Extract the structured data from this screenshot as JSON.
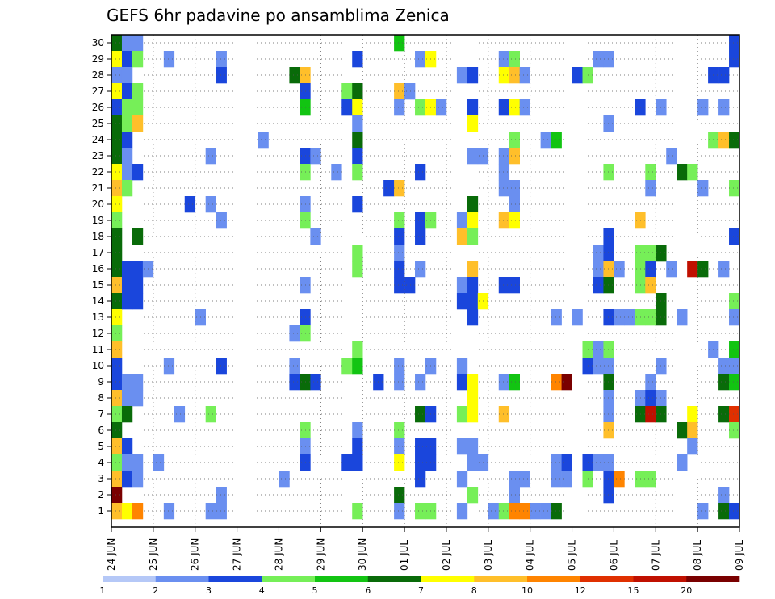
{
  "chart_data": {
    "type": "heatmap",
    "title": "GEFS 6hr padavine po ansamblima Zenica",
    "xlabel": "",
    "ylabel": "",
    "y_range": [
      1,
      30
    ],
    "x_range_days": [
      "24 JUN",
      "09 JUL"
    ],
    "y_ticks": [
      "1",
      "2",
      "3",
      "4",
      "5",
      "6",
      "7",
      "8",
      "9",
      "10",
      "11",
      "12",
      "13",
      "14",
      "15",
      "16",
      "17",
      "18",
      "19",
      "20",
      "21",
      "22",
      "23",
      "24",
      "25",
      "26",
      "27",
      "28",
      "29",
      "30"
    ],
    "x_ticks": [
      "24 JUN",
      "25 JUN",
      "26 JUN",
      "27 JUN",
      "28 JUN",
      "29 JUN",
      "30 JUN",
      "01 JUL",
      "02 JUL",
      "03 JUL",
      "04 JUL",
      "05 JUL",
      "06 JUL",
      "07 JUL",
      "08 JUL",
      "09 JUL"
    ],
    "grid": true,
    "legend": "bottom colorbar",
    "colorbar": {
      "levels": [
        1,
        2,
        3,
        4,
        5,
        6,
        7,
        8,
        10,
        12,
        15,
        20
      ],
      "labels": [
        "1",
        "2",
        "3",
        "4",
        "5",
        "6",
        "7",
        "8",
        "10",
        "12",
        "15",
        "20"
      ],
      "colors": [
        "#b5c8f7",
        "#6a8ff0",
        "#1a46dc",
        "#76ef58",
        "#12c412",
        "#096b09",
        "#ffff00",
        "#ffbf2a",
        "#ff8400",
        "#e03000",
        "#c01000",
        "#7a0000"
      ]
    },
    "columns": 60,
    "cells": [
      [
        0,
        30,
        5
      ],
      [
        0,
        29,
        6
      ],
      [
        0,
        28,
        1
      ],
      [
        0,
        27,
        6
      ],
      [
        0,
        26,
        2
      ],
      [
        0,
        25,
        5
      ],
      [
        0,
        24,
        5
      ],
      [
        0,
        23,
        5
      ],
      [
        0,
        22,
        6
      ],
      [
        0,
        21,
        7
      ],
      [
        0,
        20,
        6
      ],
      [
        0,
        19,
        3
      ],
      [
        0,
        18,
        5
      ],
      [
        0,
        17,
        5
      ],
      [
        0,
        16,
        5
      ],
      [
        0,
        15,
        7
      ],
      [
        0,
        14,
        5
      ],
      [
        0,
        13,
        6
      ],
      [
        0,
        12,
        3
      ],
      [
        0,
        11,
        7
      ],
      [
        0,
        10,
        2
      ],
      [
        0,
        9,
        2
      ],
      [
        0,
        8,
        7
      ],
      [
        0,
        7,
        3
      ],
      [
        0,
        6,
        5
      ],
      [
        0,
        5,
        7
      ],
      [
        0,
        4,
        3
      ],
      [
        0,
        3,
        7
      ],
      [
        0,
        2,
        11
      ],
      [
        0,
        1,
        7
      ],
      [
        1,
        30,
        1
      ],
      [
        1,
        29,
        2
      ],
      [
        1,
        28,
        1
      ],
      [
        1,
        27,
        2
      ],
      [
        1,
        26,
        3
      ],
      [
        1,
        25,
        3
      ],
      [
        1,
        24,
        2
      ],
      [
        1,
        23,
        1
      ],
      [
        1,
        22,
        1
      ],
      [
        1,
        21,
        3
      ],
      [
        1,
        16,
        2
      ],
      [
        1,
        15,
        2
      ],
      [
        1,
        14,
        2
      ],
      [
        1,
        9,
        1
      ],
      [
        1,
        8,
        1
      ],
      [
        1,
        7,
        5
      ],
      [
        1,
        5,
        2
      ],
      [
        1,
        4,
        1
      ],
      [
        1,
        3,
        2
      ],
      [
        1,
        1,
        6
      ],
      [
        2,
        30,
        1
      ],
      [
        2,
        29,
        3
      ],
      [
        2,
        27,
        3
      ],
      [
        2,
        26,
        3
      ],
      [
        2,
        25,
        7
      ],
      [
        2,
        22,
        2
      ],
      [
        2,
        18,
        5
      ],
      [
        2,
        16,
        2
      ],
      [
        2,
        15,
        2
      ],
      [
        2,
        14,
        2
      ],
      [
        2,
        9,
        1
      ],
      [
        2,
        8,
        1
      ],
      [
        2,
        4,
        1
      ],
      [
        2,
        3,
        1
      ],
      [
        2,
        1,
        8
      ],
      [
        3,
        16,
        1
      ],
      [
        4,
        4,
        1
      ],
      [
        5,
        29,
        1
      ],
      [
        5,
        10,
        1
      ],
      [
        5,
        1,
        1
      ],
      [
        6,
        7,
        1
      ],
      [
        7,
        20,
        2
      ],
      [
        8,
        13,
        1
      ],
      [
        9,
        23,
        1
      ],
      [
        9,
        20,
        1
      ],
      [
        9,
        7,
        3
      ],
      [
        9,
        1,
        1
      ],
      [
        10,
        29,
        1
      ],
      [
        10,
        28,
        2
      ],
      [
        10,
        19,
        1
      ],
      [
        10,
        10,
        2
      ],
      [
        10,
        2,
        1
      ],
      [
        10,
        1,
        1
      ],
      [
        14,
        24,
        1
      ],
      [
        16,
        3,
        1
      ],
      [
        17,
        28,
        5
      ],
      [
        17,
        12,
        1
      ],
      [
        17,
        10,
        1
      ],
      [
        17,
        9,
        2
      ],
      [
        18,
        28,
        7
      ],
      [
        18,
        27,
        2
      ],
      [
        18,
        26,
        4
      ],
      [
        18,
        23,
        2
      ],
      [
        18,
        22,
        3
      ],
      [
        18,
        20,
        1
      ],
      [
        18,
        19,
        3
      ],
      [
        18,
        15,
        1
      ],
      [
        18,
        13,
        2
      ],
      [
        18,
        12,
        3
      ],
      [
        18,
        9,
        5
      ],
      [
        18,
        6,
        3
      ],
      [
        18,
        5,
        1
      ],
      [
        18,
        4,
        2
      ],
      [
        19,
        23,
        1
      ],
      [
        19,
        18,
        1
      ],
      [
        19,
        9,
        2
      ],
      [
        21,
        22,
        1
      ],
      [
        22,
        27,
        3
      ],
      [
        22,
        26,
        2
      ],
      [
        22,
        10,
        3
      ],
      [
        22,
        4,
        2
      ],
      [
        23,
        29,
        2
      ],
      [
        23,
        27,
        5
      ],
      [
        23,
        26,
        6
      ],
      [
        23,
        25,
        1
      ],
      [
        23,
        24,
        5
      ],
      [
        23,
        23,
        2
      ],
      [
        23,
        22,
        3
      ],
      [
        23,
        20,
        2
      ],
      [
        23,
        17,
        3
      ],
      [
        23,
        16,
        3
      ],
      [
        23,
        11,
        3
      ],
      [
        23,
        10,
        4
      ],
      [
        23,
        6,
        1
      ],
      [
        23,
        5,
        2
      ],
      [
        23,
        4,
        2
      ],
      [
        23,
        1,
        3
      ],
      [
        25,
        9,
        2
      ],
      [
        26,
        21,
        2
      ],
      [
        27,
        30,
        4
      ],
      [
        27,
        27,
        7
      ],
      [
        27,
        26,
        1
      ],
      [
        27,
        21,
        7
      ],
      [
        27,
        19,
        3
      ],
      [
        27,
        18,
        2
      ],
      [
        27,
        17,
        1
      ],
      [
        27,
        16,
        2
      ],
      [
        27,
        15,
        2
      ],
      [
        27,
        10,
        1
      ],
      [
        27,
        9,
        1
      ],
      [
        27,
        6,
        3
      ],
      [
        27,
        5,
        1
      ],
      [
        27,
        4,
        6
      ],
      [
        27,
        2,
        5
      ],
      [
        27,
        1,
        1
      ],
      [
        28,
        27,
        1
      ],
      [
        28,
        15,
        2
      ],
      [
        29,
        29,
        1
      ],
      [
        29,
        26,
        3
      ],
      [
        29,
        22,
        2
      ],
      [
        29,
        19,
        2
      ],
      [
        29,
        18,
        2
      ],
      [
        29,
        16,
        1
      ],
      [
        29,
        9,
        1
      ],
      [
        29,
        7,
        5
      ],
      [
        29,
        5,
        2
      ],
      [
        29,
        4,
        2
      ],
      [
        29,
        3,
        2
      ],
      [
        29,
        1,
        3
      ],
      [
        30,
        29,
        6
      ],
      [
        30,
        26,
        6
      ],
      [
        30,
        19,
        3
      ],
      [
        30,
        10,
        1
      ],
      [
        30,
        7,
        2
      ],
      [
        30,
        5,
        2
      ],
      [
        30,
        4,
        2
      ],
      [
        30,
        1,
        3
      ],
      [
        31,
        26,
        1
      ],
      [
        33,
        28,
        1
      ],
      [
        33,
        19,
        1
      ],
      [
        33,
        18,
        7
      ],
      [
        33,
        15,
        1
      ],
      [
        33,
        14,
        2
      ],
      [
        33,
        10,
        1
      ],
      [
        33,
        9,
        2
      ],
      [
        33,
        7,
        3
      ],
      [
        33,
        5,
        1
      ],
      [
        33,
        3,
        1
      ],
      [
        33,
        1,
        1
      ],
      [
        34,
        28,
        2
      ],
      [
        34,
        26,
        2
      ],
      [
        34,
        25,
        6
      ],
      [
        34,
        23,
        1
      ],
      [
        34,
        20,
        5
      ],
      [
        34,
        19,
        6
      ],
      [
        34,
        18,
        3
      ],
      [
        34,
        16,
        7
      ],
      [
        34,
        15,
        2
      ],
      [
        34,
        14,
        2
      ],
      [
        34,
        13,
        2
      ],
      [
        34,
        9,
        6
      ],
      [
        34,
        8,
        6
      ],
      [
        34,
        7,
        6
      ],
      [
        34,
        5,
        1
      ],
      [
        34,
        4,
        1
      ],
      [
        34,
        2,
        3
      ],
      [
        35,
        23,
        1
      ],
      [
        35,
        14,
        6
      ],
      [
        35,
        4,
        1
      ],
      [
        36,
        1,
        1
      ],
      [
        37,
        29,
        1
      ],
      [
        37,
        28,
        6
      ],
      [
        37,
        26,
        2
      ],
      [
        37,
        23,
        1
      ],
      [
        37,
        22,
        1
      ],
      [
        37,
        21,
        1
      ],
      [
        37,
        19,
        7
      ],
      [
        37,
        15,
        2
      ],
      [
        37,
        9,
        1
      ],
      [
        37,
        7,
        7
      ],
      [
        37,
        1,
        3
      ],
      [
        38,
        29,
        3
      ],
      [
        38,
        28,
        7
      ],
      [
        38,
        26,
        6
      ],
      [
        38,
        24,
        3
      ],
      [
        38,
        23,
        7
      ],
      [
        38,
        21,
        1
      ],
      [
        38,
        20,
        1
      ],
      [
        38,
        19,
        6
      ],
      [
        38,
        15,
        2
      ],
      [
        38,
        9,
        4
      ],
      [
        38,
        3,
        1
      ],
      [
        38,
        2,
        1
      ],
      [
        38,
        1,
        8
      ],
      [
        39,
        28,
        1
      ],
      [
        39,
        26,
        1
      ],
      [
        39,
        3,
        1
      ],
      [
        39,
        1,
        8
      ],
      [
        40,
        1,
        1
      ],
      [
        41,
        24,
        1
      ],
      [
        41,
        1,
        1
      ],
      [
        42,
        24,
        4
      ],
      [
        42,
        13,
        1
      ],
      [
        42,
        9,
        8
      ],
      [
        42,
        4,
        1
      ],
      [
        42,
        3,
        1
      ],
      [
        42,
        1,
        5
      ],
      [
        43,
        9,
        11
      ],
      [
        43,
        4,
        2
      ],
      [
        43,
        3,
        1
      ],
      [
        44,
        13,
        1
      ],
      [
        44,
        28,
        2
      ],
      [
        45,
        28,
        3
      ],
      [
        45,
        11,
        3
      ],
      [
        45,
        10,
        2
      ],
      [
        45,
        4,
        2
      ],
      [
        45,
        3,
        3
      ],
      [
        46,
        29,
        1
      ],
      [
        46,
        17,
        1
      ],
      [
        46,
        16,
        1
      ],
      [
        46,
        15,
        2
      ],
      [
        46,
        11,
        1
      ],
      [
        46,
        10,
        1
      ],
      [
        46,
        4,
        1
      ],
      [
        47,
        29,
        1
      ],
      [
        47,
        25,
        1
      ],
      [
        47,
        22,
        3
      ],
      [
        47,
        18,
        2
      ],
      [
        47,
        17,
        2
      ],
      [
        47,
        16,
        7
      ],
      [
        47,
        15,
        5
      ],
      [
        47,
        13,
        2
      ],
      [
        47,
        11,
        3
      ],
      [
        47,
        10,
        1
      ],
      [
        47,
        9,
        5
      ],
      [
        47,
        8,
        1
      ],
      [
        47,
        7,
        1
      ],
      [
        47,
        6,
        7
      ],
      [
        47,
        4,
        1
      ],
      [
        47,
        3,
        2
      ],
      [
        47,
        2,
        2
      ],
      [
        48,
        16,
        1
      ],
      [
        48,
        13,
        1
      ],
      [
        48,
        3,
        8
      ],
      [
        49,
        13,
        1
      ],
      [
        50,
        26,
        2
      ],
      [
        50,
        19,
        7
      ],
      [
        50,
        17,
        3
      ],
      [
        50,
        16,
        3
      ],
      [
        50,
        15,
        3
      ],
      [
        50,
        13,
        3
      ],
      [
        50,
        8,
        1
      ],
      [
        50,
        7,
        5
      ],
      [
        50,
        3,
        3
      ],
      [
        51,
        22,
        3
      ],
      [
        51,
        21,
        1
      ],
      [
        51,
        17,
        3
      ],
      [
        51,
        16,
        2
      ],
      [
        51,
        15,
        7
      ],
      [
        51,
        13,
        3
      ],
      [
        51,
        9,
        1
      ],
      [
        51,
        8,
        2
      ],
      [
        51,
        7,
        10
      ],
      [
        51,
        3,
        3
      ],
      [
        52,
        26,
        1
      ],
      [
        52,
        17,
        5
      ],
      [
        52,
        14,
        5
      ],
      [
        52,
        13,
        5
      ],
      [
        52,
        10,
        1
      ],
      [
        52,
        8,
        1
      ],
      [
        52,
        7,
        5
      ],
      [
        53,
        23,
        1
      ],
      [
        53,
        16,
        1
      ],
      [
        54,
        22,
        5
      ],
      [
        54,
        13,
        1
      ],
      [
        54,
        6,
        5
      ],
      [
        54,
        4,
        1
      ],
      [
        55,
        22,
        3
      ],
      [
        55,
        16,
        10
      ],
      [
        55,
        7,
        6
      ],
      [
        55,
        6,
        7
      ],
      [
        55,
        5,
        1
      ],
      [
        56,
        26,
        1
      ],
      [
        56,
        21,
        1
      ],
      [
        56,
        16,
        5
      ],
      [
        56,
        1,
        1
      ],
      [
        57,
        28,
        2
      ],
      [
        57,
        24,
        3
      ],
      [
        57,
        11,
        1
      ],
      [
        58,
        28,
        2
      ],
      [
        58,
        26,
        1
      ],
      [
        58,
        24,
        7
      ],
      [
        58,
        16,
        1
      ],
      [
        58,
        10,
        1
      ],
      [
        58,
        9,
        5
      ],
      [
        58,
        7,
        5
      ],
      [
        58,
        2,
        1
      ],
      [
        58,
        1,
        5
      ],
      [
        59,
        30,
        2
      ],
      [
        59,
        29,
        2
      ],
      [
        59,
        24,
        5
      ],
      [
        59,
        21,
        3
      ],
      [
        59,
        18,
        2
      ],
      [
        59,
        14,
        3
      ],
      [
        59,
        13,
        1
      ],
      [
        59,
        11,
        4
      ],
      [
        59,
        10,
        1
      ],
      [
        59,
        9,
        4
      ],
      [
        59,
        7,
        9
      ],
      [
        59,
        6,
        3
      ],
      [
        59,
        1,
        2
      ]
    ]
  }
}
